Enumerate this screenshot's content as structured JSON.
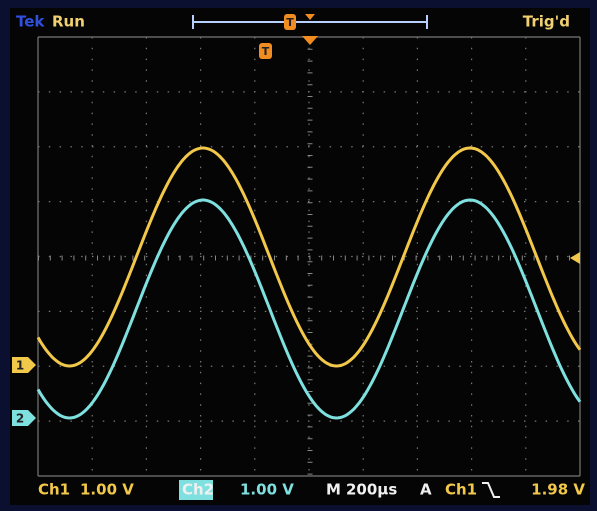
{
  "header": {
    "brand": "Tek",
    "status": "Run",
    "trigger_state": "Trig'd",
    "position_marker": "T",
    "trigger_marker": "T"
  },
  "markers": {
    "ch1": "1",
    "ch2": "2"
  },
  "footer": {
    "ch1_label": "Ch1",
    "ch1_scale": "1.00 V",
    "ch2_label": "Ch2",
    "ch2_scale": "1.00 V",
    "timebase_label": "M",
    "timebase": "200µs",
    "trigger_label": "A",
    "trigger_source": "Ch1",
    "trigger_level": "1.98 V"
  }
}
